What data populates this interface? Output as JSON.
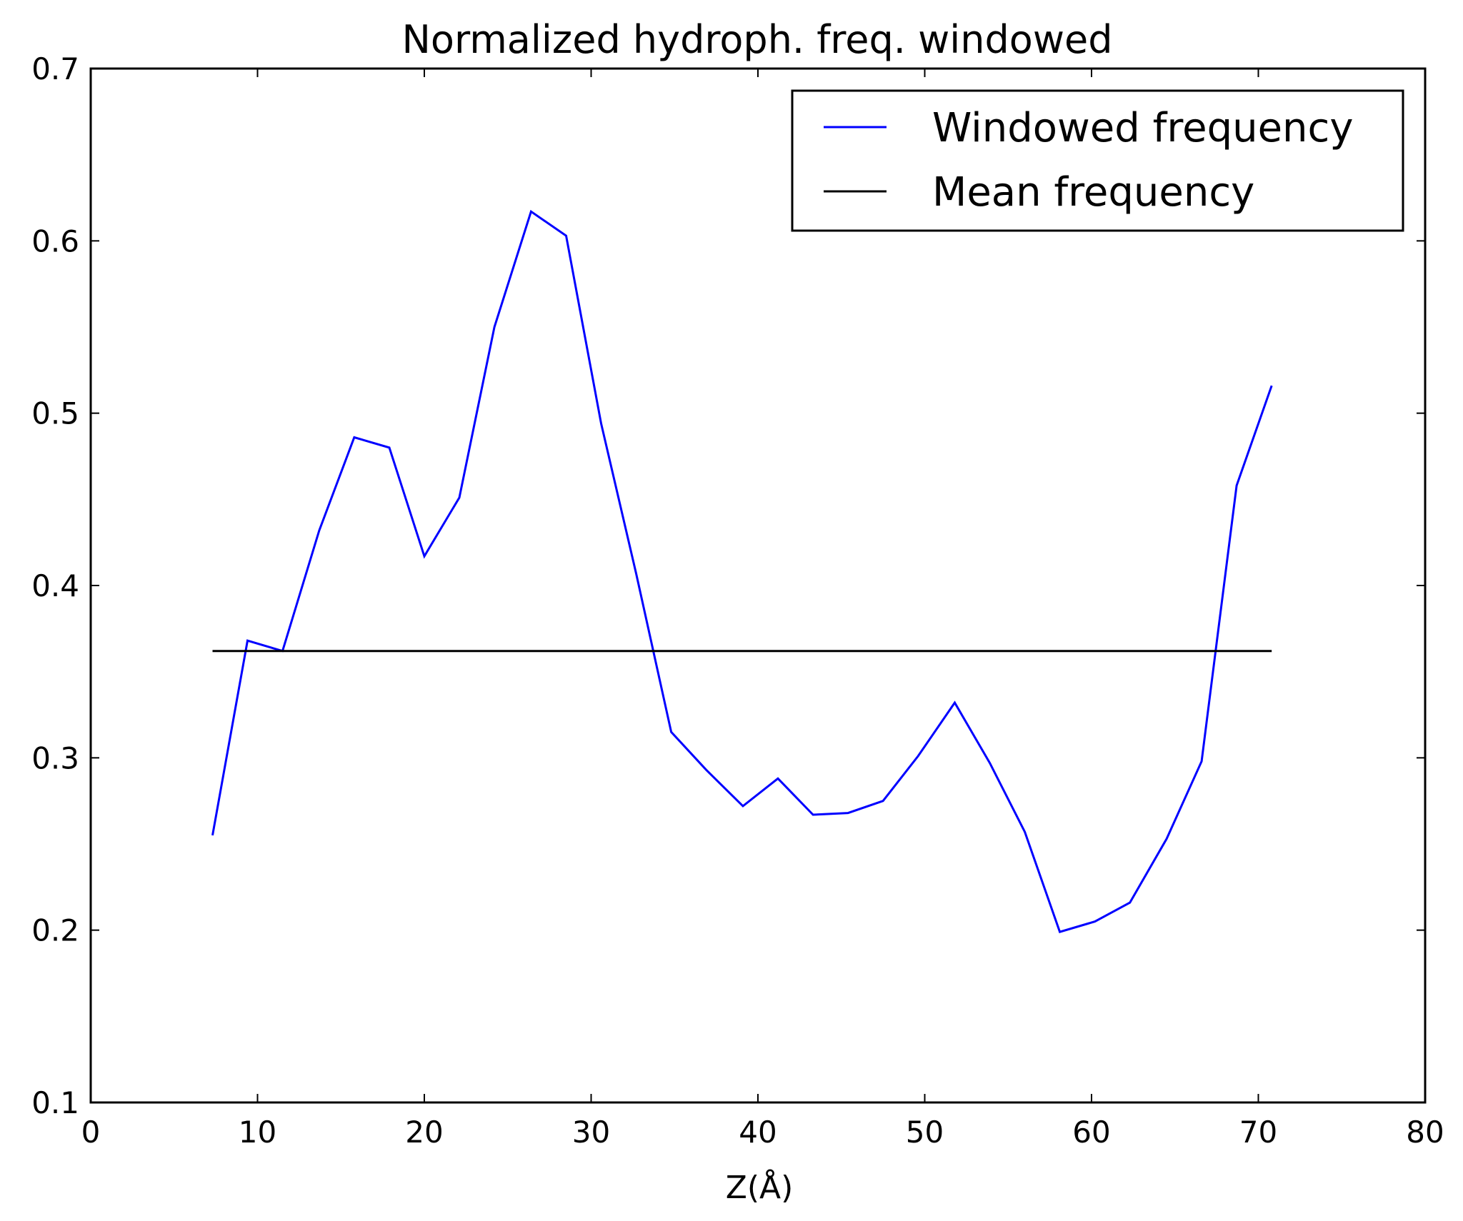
{
  "chart_data": {
    "type": "line",
    "title": "Normalized hydroph. freq. windowed",
    "xlabel": "Z(Å)",
    "ylabel": "",
    "xlim": [
      0,
      80
    ],
    "ylim": [
      0.1,
      0.7
    ],
    "xticks": [
      "0",
      "10",
      "20",
      "30",
      "40",
      "50",
      "60",
      "70",
      "80"
    ],
    "yticks": [
      "0.1",
      "0.2",
      "0.3",
      "0.4",
      "0.5",
      "0.6",
      "0.7"
    ],
    "grid": false,
    "legend_position": "top-right",
    "series": [
      {
        "name": "Windowed frequency",
        "color": "#0000ff",
        "x": [
          7.3,
          9.4,
          11.5,
          13.7,
          15.8,
          17.9,
          20.0,
          22.1,
          24.2,
          26.4,
          28.5,
          30.6,
          32.7,
          34.8,
          36.9,
          39.1,
          41.2,
          43.3,
          45.4,
          47.5,
          49.6,
          51.8,
          53.9,
          56.0,
          58.1,
          60.2,
          62.3,
          64.5,
          66.6,
          68.7,
          70.8
        ],
        "y": [
          0.255,
          0.368,
          0.362,
          0.432,
          0.486,
          0.48,
          0.417,
          0.451,
          0.55,
          0.617,
          0.603,
          0.494,
          0.407,
          0.315,
          0.293,
          0.272,
          0.288,
          0.267,
          0.268,
          0.275,
          0.301,
          0.332,
          0.297,
          0.257,
          0.199,
          0.205,
          0.216,
          0.253,
          0.298,
          0.458,
          0.516
        ]
      },
      {
        "name": "Mean frequency",
        "color": "#000000",
        "x": [
          7.3,
          70.8
        ],
        "y": [
          0.362,
          0.362
        ]
      }
    ]
  }
}
